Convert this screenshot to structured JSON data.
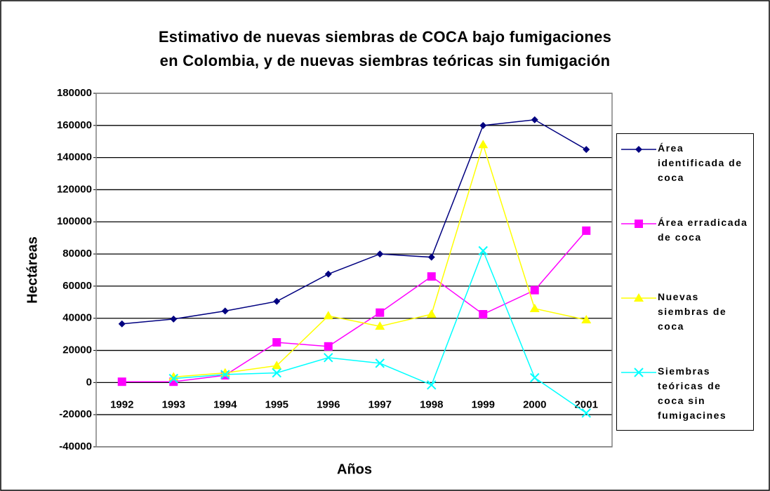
{
  "chart_data": {
    "type": "line",
    "title": "Estimativo de nuevas siembras de COCA bajo fumigaciones\nen Colombia, y de nuevas siembras teóricas sin fumigación",
    "x_label": "Años",
    "y_label": "Hectáreas",
    "categories": [
      "1992",
      "1993",
      "1994",
      "1995",
      "1996",
      "1997",
      "1998",
      "1999",
      "2000",
      "2001"
    ],
    "series": [
      {
        "name": "Área identificada de coca",
        "color": "#000080",
        "marker": "diamond",
        "values": [
          36500,
          39500,
          44500,
          50500,
          67500,
          80000,
          78000,
          160000,
          163500,
          145000
        ]
      },
      {
        "name": "Área erradicada de coca",
        "color": "#ff00ff",
        "marker": "square",
        "values": [
          500,
          500,
          4500,
          25000,
          22500,
          43500,
          66000,
          42500,
          57500,
          94500
        ]
      },
      {
        "name": "Nuevas siembras de coca",
        "color": "#ffff00",
        "marker": "triangle",
        "values": [
          null,
          3500,
          6000,
          10500,
          41500,
          35000,
          42500,
          148000,
          46000,
          39000
        ]
      },
      {
        "name": "Siembras teóricas de coca sin fumigacines",
        "color": "#00ffff",
        "marker": "x",
        "values": [
          null,
          2500,
          5000,
          6000,
          15500,
          12000,
          -1500,
          82000,
          3000,
          -19000
        ]
      }
    ],
    "ylim": [
      -40000,
      180000
    ],
    "yticks": [
      -40000,
      -20000,
      0,
      20000,
      40000,
      60000,
      80000,
      100000,
      120000,
      140000,
      160000,
      180000
    ],
    "grid": true,
    "legend": "right"
  }
}
